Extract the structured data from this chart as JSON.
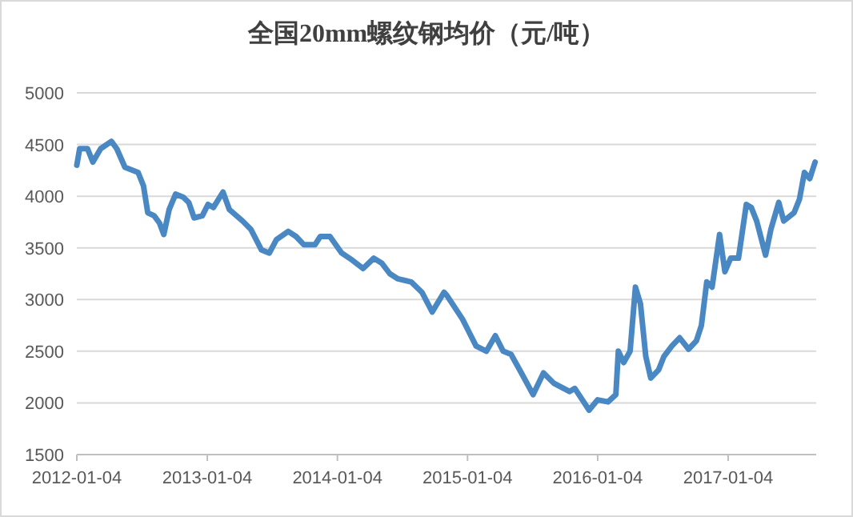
{
  "chart_data": {
    "type": "line",
    "title": "全国20mm螺纹钢均价（元/吨）",
    "x": [
      "2012-01-04",
      "2012-01-12",
      "2012-02-03",
      "2012-02-18",
      "2012-03-11",
      "2012-04-10",
      "2012-04-25",
      "2012-05-18",
      "2012-06-24",
      "2012-07-09",
      "2012-07-21",
      "2012-08-08",
      "2012-08-23",
      "2012-09-04",
      "2012-09-19",
      "2012-10-07",
      "2012-10-29",
      "2012-11-13",
      "2012-11-28",
      "2012-12-21",
      "2013-01-06",
      "2013-01-21",
      "2013-02-17",
      "2013-03-07",
      "2013-04-13",
      "2013-05-06",
      "2013-06-05",
      "2013-06-27",
      "2013-07-17",
      "2013-08-19",
      "2013-09-10",
      "2013-10-02",
      "2013-11-02",
      "2013-11-17",
      "2013-12-14",
      "2014-01-16",
      "2014-02-15",
      "2014-03-17",
      "2014-04-16",
      "2014-05-09",
      "2014-05-31",
      "2014-06-23",
      "2014-07-30",
      "2014-08-29",
      "2014-09-27",
      "2014-10-30",
      "2014-11-07",
      "2014-12-21",
      "2015-01-06",
      "2015-01-28",
      "2015-02-26",
      "2015-03-23",
      "2015-04-14",
      "2015-05-06",
      "2015-06-04",
      "2015-07-07",
      "2015-08-05",
      "2015-09-03",
      "2015-10-17",
      "2015-11-01",
      "2015-12-11",
      "2016-01-04",
      "2016-02-02",
      "2016-02-24",
      "2016-03-02",
      "2016-03-17",
      "2016-04-04",
      "2016-04-19",
      "2016-05-03",
      "2016-05-18",
      "2016-06-01",
      "2016-06-23",
      "2016-07-08",
      "2016-07-30",
      "2016-08-21",
      "2016-09-15",
      "2016-10-07",
      "2016-10-21",
      "2016-11-05",
      "2016-11-20",
      "2016-12-11",
      "2016-12-26",
      "2017-01-11",
      "2017-02-02",
      "2017-02-24",
      "2017-03-10",
      "2017-03-25",
      "2017-04-19",
      "2017-05-04",
      "2017-05-26",
      "2017-06-09",
      "2017-07-08",
      "2017-07-23",
      "2017-08-06",
      "2017-08-21",
      "2017-09-05"
    ],
    "series": [
      {
        "color": "#4a88c4",
        "values": [
          4300,
          4460,
          4460,
          4330,
          4460,
          4530,
          4460,
          4280,
          4230,
          4100,
          3840,
          3810,
          3740,
          3630,
          3870,
          4020,
          3990,
          3940,
          3790,
          3810,
          3920,
          3890,
          4040,
          3870,
          3760,
          3680,
          3480,
          3450,
          3580,
          3660,
          3610,
          3530,
          3530,
          3610,
          3610,
          3450,
          3380,
          3300,
          3400,
          3350,
          3250,
          3200,
          3170,
          3070,
          2880,
          3070,
          3040,
          2810,
          2700,
          2550,
          2500,
          2650,
          2500,
          2470,
          2290,
          2080,
          2290,
          2190,
          2110,
          2140,
          1930,
          2030,
          2010,
          2080,
          2500,
          2390,
          2500,
          3120,
          2960,
          2450,
          2240,
          2320,
          2450,
          2550,
          2630,
          2520,
          2600,
          2750,
          3170,
          3120,
          3630,
          3270,
          3400,
          3400,
          3920,
          3890,
          3760,
          3430,
          3680,
          3940,
          3760,
          3840,
          3970,
          4230,
          4170,
          4330
        ]
      }
    ],
    "ylim": [
      1500,
      5000
    ],
    "yticks": [
      1500,
      2000,
      2500,
      3000,
      3500,
      4000,
      4500,
      5000
    ],
    "xlim": [
      "2012-01-04",
      "2017-09-08"
    ],
    "xticks": [
      {
        "value": "2012-01-04",
        "label": "2012-01-04"
      },
      {
        "value": "2013-01-04",
        "label": "2013-01-04"
      },
      {
        "value": "2014-01-04",
        "label": "2014-01-04"
      },
      {
        "value": "2015-01-04",
        "label": "2015-01-04"
      },
      {
        "value": "2016-01-04",
        "label": "2016-01-04"
      },
      {
        "value": "2017-01-04",
        "label": "2017-01-04"
      }
    ],
    "grid": "y",
    "line_style": "solid",
    "marker": "none"
  }
}
